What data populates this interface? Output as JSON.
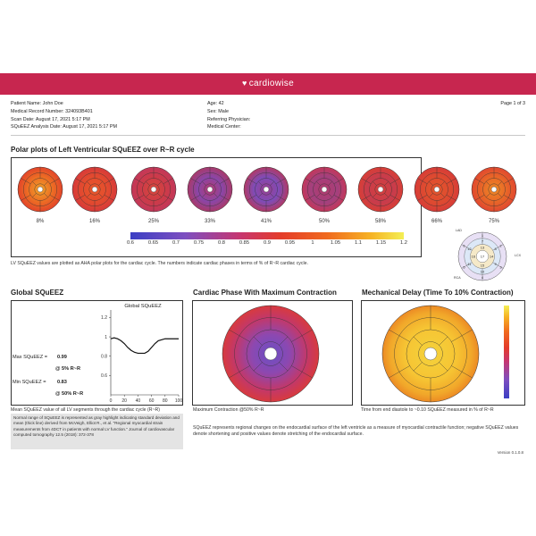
{
  "brand": {
    "name": "cardiowise",
    "color": "#c7264f"
  },
  "header": {
    "patient_name": "Patient Name: John Doe",
    "record_number": "Medical Record Number: 324093B401",
    "scan_date": "Scan Date: August 17, 2021 5:17 PM",
    "analysis_date": "SQuEEZ Analysis Date: August 17, 2021 5:17 PM",
    "age": "Age: 42",
    "sex": "Sex: Male",
    "referring_physician": "Referring Physician:",
    "medical_center": "Medical Center:",
    "page": "Page 1 of 3"
  },
  "polar": {
    "title": "Polar plots of Left Ventricular SQuEEZ over R~R cycle",
    "phases": [
      "8%",
      "16%",
      "25%",
      "33%",
      "41%",
      "50%",
      "58%",
      "66%",
      "75%"
    ],
    "colorbar_ticks": [
      "0.6",
      "0.65",
      "0.7",
      "0.75",
      "0.8",
      "0.85",
      "0.9",
      "0.95",
      "1",
      "1.05",
      "1.1",
      "1.15",
      "1.2"
    ],
    "note": "LV SQuEEZ values are plotted as AHA polar plots for the cardiac cycle. The numbers indicate cardiac phases in terms of % of R~R cardiac cycle."
  },
  "aha_key": {
    "segments": [
      "1",
      "2",
      "3",
      "4",
      "5",
      "6",
      "7",
      "8",
      "9",
      "10",
      "11",
      "12",
      "13",
      "14",
      "15",
      "16",
      "17"
    ],
    "labels": [
      "LAD",
      "RCA",
      "LCX"
    ]
  },
  "global": {
    "title": "Global SQuEEZ",
    "plot_title": "Global SQuEEZ",
    "max_label": "Max SQuEEZ =",
    "max_value": "0.99",
    "max_at": "@ 5% R~R",
    "min_label": "Min SQuEEZ =",
    "min_value": "0.83",
    "min_at": "@ 50% R~R",
    "caption": "Mean SQuEEZ value of all LV segments through the cardiac cycle (R~R)",
    "normal_note": "Normal range of SQuEEZ is represented as gray highlight indicating standard deviation and mean (thick line) derived from McVeigh, Elliot R., et al. \"Regional myocardial strain measurements from 4DCT in patients with normal LV function.\" Journal of cardiovascular computed tomography 12.5 (2018): 372-378"
  },
  "chart_data": {
    "type": "line",
    "title": "Global SQuEEZ",
    "x": [
      0,
      5,
      10,
      15,
      20,
      25,
      30,
      35,
      40,
      45,
      50,
      55,
      60,
      65,
      70,
      75,
      80,
      85,
      90,
      95,
      100
    ],
    "series": [
      {
        "values": [
          0.98,
          0.99,
          0.98,
          0.96,
          0.93,
          0.89,
          0.86,
          0.84,
          0.83,
          0.83,
          0.83,
          0.85,
          0.89,
          0.93,
          0.96,
          0.97,
          0.98,
          0.98,
          0.98,
          0.98,
          0.98
        ]
      }
    ],
    "xticks": [
      "0",
      "20",
      "40",
      "60",
      "80",
      "100"
    ],
    "yticks": [
      "0.6",
      "0.8",
      "1",
      "1.2"
    ],
    "xlim": [
      0,
      100
    ],
    "ylim": [
      0.4,
      1.25
    ],
    "grid": false
  },
  "max_contraction": {
    "title": "Cardiac Phase With Maximum Contraction",
    "caption": "Maximum Contraction @50% R~R"
  },
  "delay": {
    "title": "Mechanical Delay (Time To 10% Contraction)",
    "caption": "Time from end diastole to ~0.10 SQuEEZ measured in % of R~R"
  },
  "footer_note": "SQuEEZ represents regional changes on the endocardial surface of the left ventricle as a measure of myocardial contractile function; negative SQuEEZ values denote shortening and positive values denote stretching of the endocardial surface.",
  "version": "Version 0.1.0.8"
}
